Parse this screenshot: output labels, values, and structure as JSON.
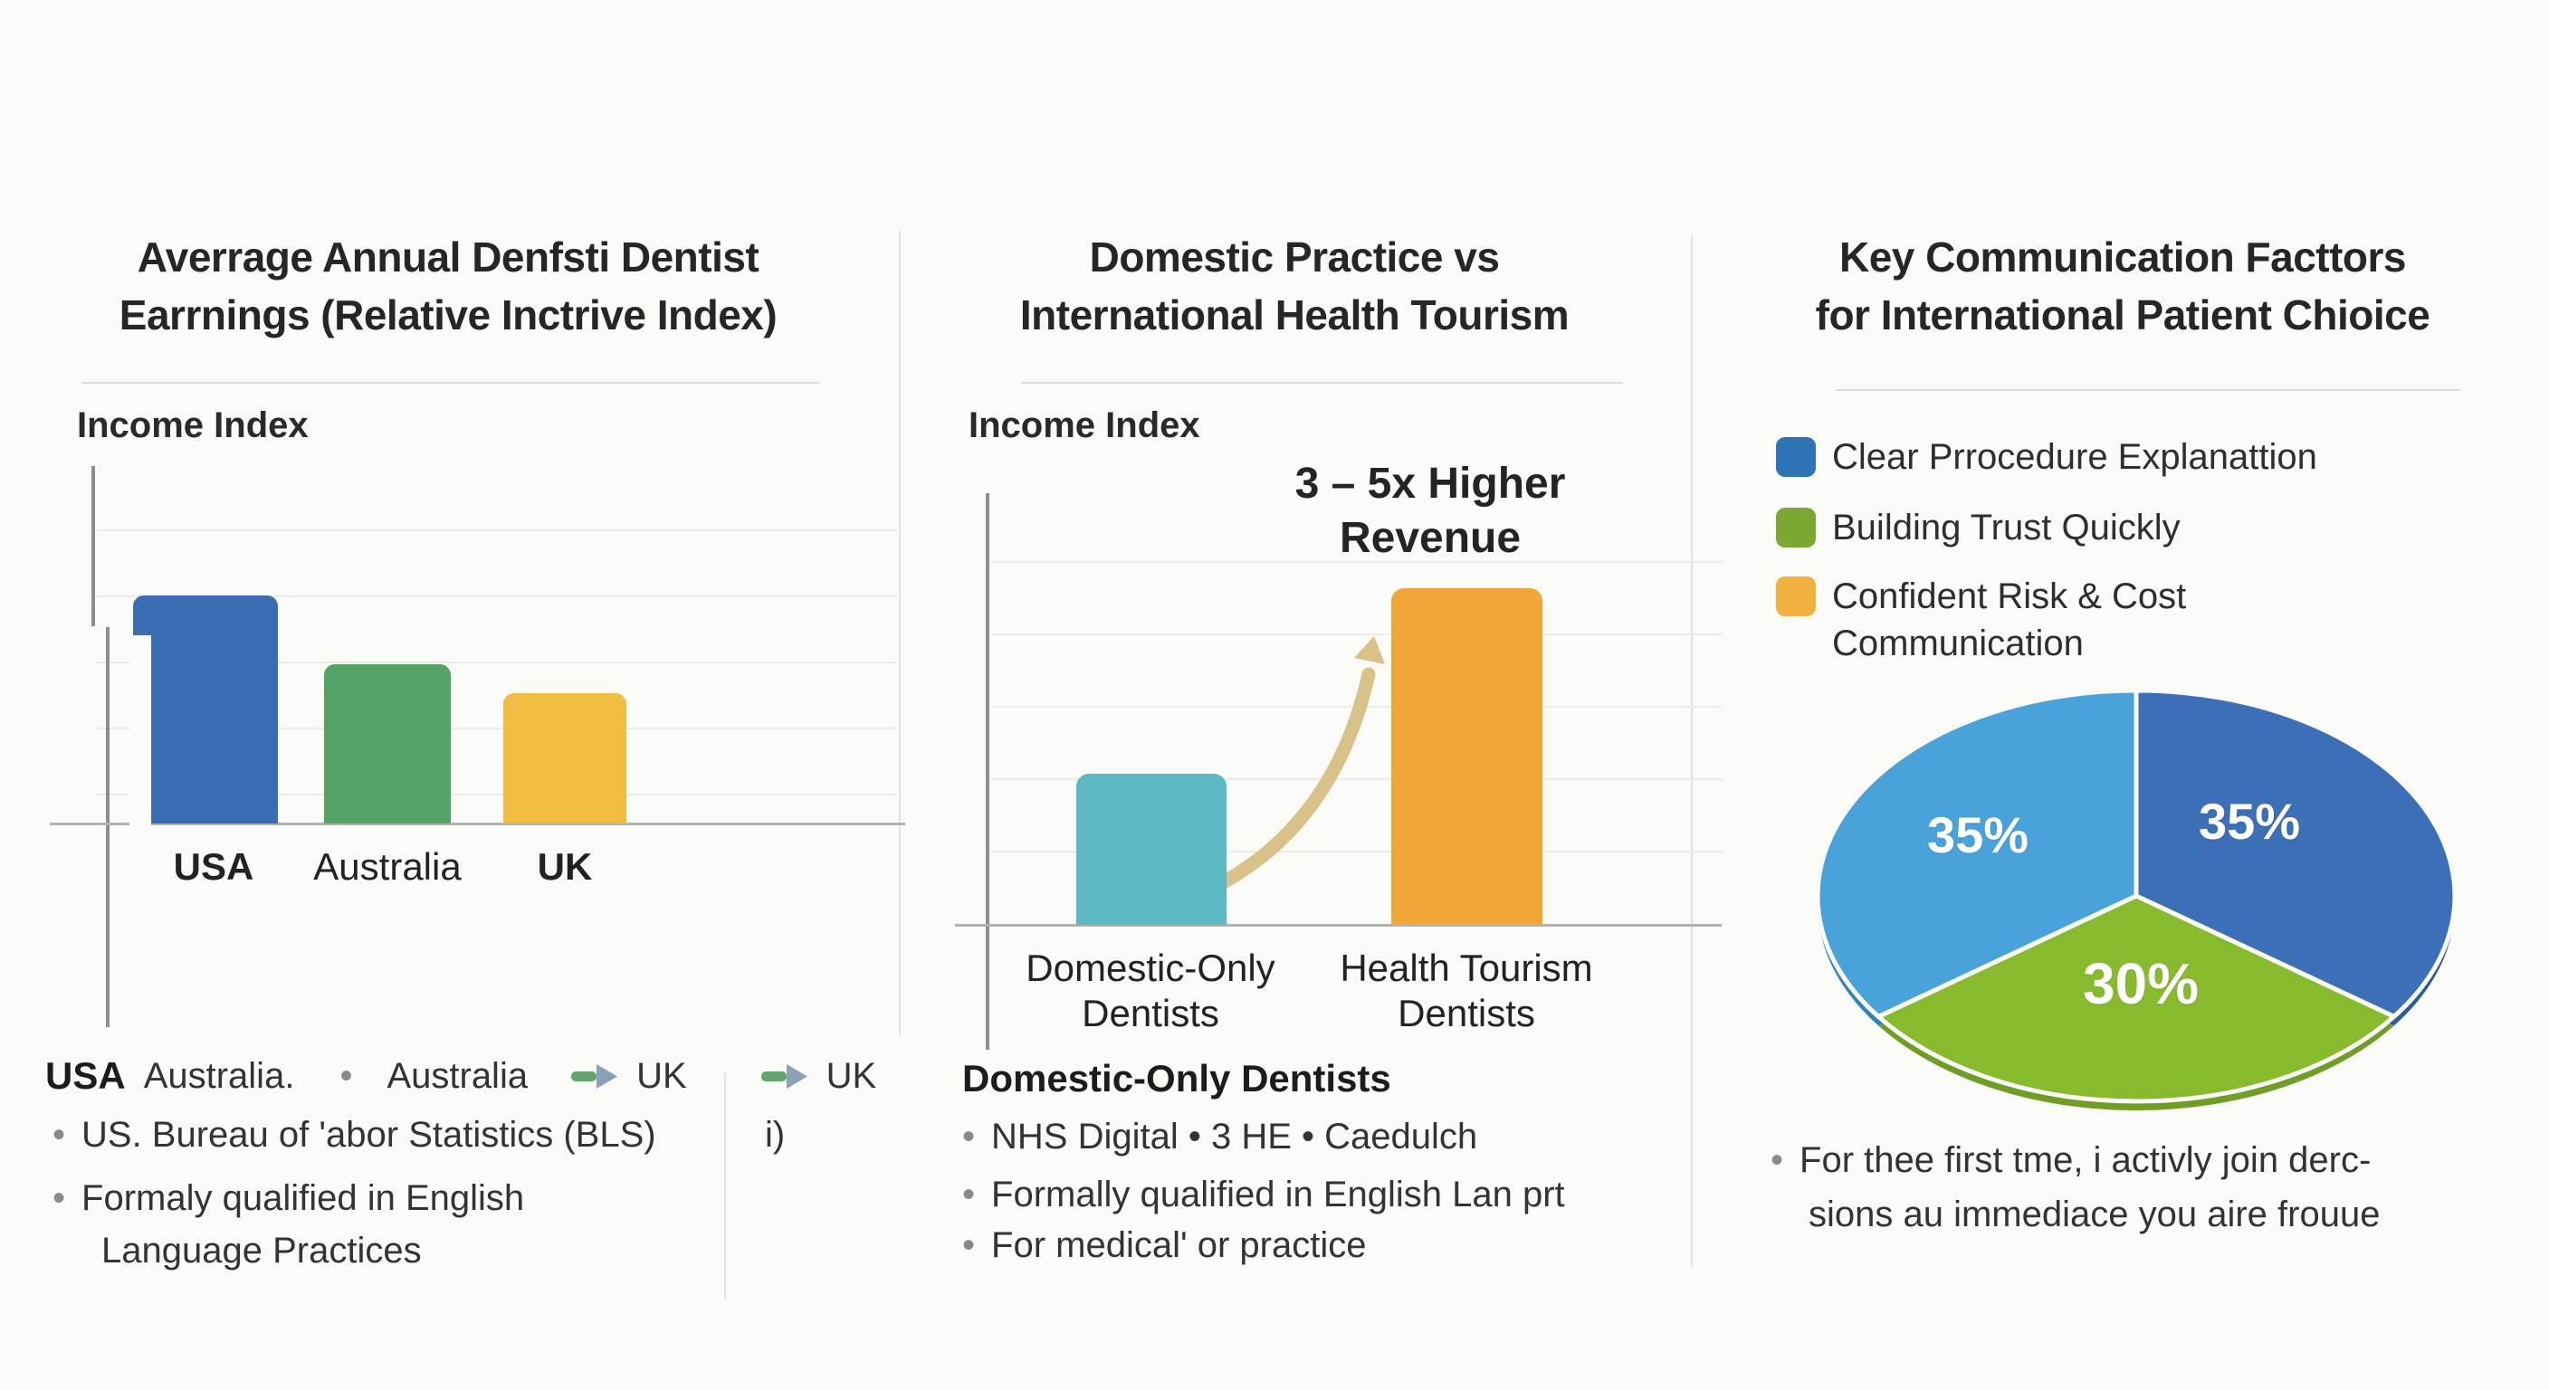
{
  "ui": {
    "bullet": "•"
  },
  "panels": {
    "earnings": {
      "title_line1": "Averrage Annual Denfsti Dentist",
      "title_line2": "Earrnings (Relative Inctrive Index)",
      "y_axis_label": "Income Index",
      "x_labels": [
        "USA",
        "Australia",
        "UK"
      ],
      "footer": {
        "strong": "USA",
        "after_strong": "Australia.",
        "item2": "Australia",
        "arrow1_target": "UK",
        "arrow2_target": "UK",
        "bullet1": "US. Bureau of 'abor Statistics (BLS)",
        "bullet1_note": "i)",
        "bullet2_line1": "Formaly qualified in English",
        "bullet2_line2": "Language Practices"
      }
    },
    "tourism": {
      "title_line1": "Domestic Practice vs",
      "title_line2": "International Health Tourism",
      "y_axis_label": "Income Index",
      "annotation_line1": "3 – 5x Higher",
      "annotation_line2": "Revenue",
      "cat1_line1": "Domestic-Only",
      "cat1_line2": "Dentists",
      "cat2_line1": "Health Tourism",
      "cat2_line2": "Dentists",
      "footer": {
        "heading": "Domestic-Only Dentists",
        "bullet1": "NHS Digital • 3 HE • Caedulch",
        "bullet2": "Formally qualified in English Lan prt",
        "bullet3": "For medical' or practice"
      }
    },
    "communication": {
      "title_line1": "Key Communication Facttors",
      "title_line2": "for International Patient Chioice",
      "legend": [
        {
          "label_line1": "Clear Prrocedure Explanattion",
          "label_line2": "",
          "color": "#2e73b5"
        },
        {
          "label_line1": "Building Trust Quickly",
          "label_line2": "",
          "color": "#7aa832"
        },
        {
          "label_line1": "Confident Risk & Cost",
          "label_line2": "Communication",
          "color": "#f0b13e"
        }
      ],
      "footer_line1": "For thee first tme, i activly join derc-",
      "footer_line2": "sions  au immediace you aire frouue"
    }
  },
  "chart_data": [
    {
      "type": "bar",
      "title": "Averrage Annual Denfsti Dentist Earrnings (Relative Inctrive Index)",
      "ylabel": "Income Index",
      "categories": [
        "USA",
        "Australia",
        "UK"
      ],
      "values": [
        100,
        70,
        57
      ],
      "colors": [
        "#3a6db4",
        "#55a266",
        "#f0bc42"
      ],
      "grid": true,
      "legend_position": "none"
    },
    {
      "type": "bar",
      "title": "Domestic Practice vs International Health Tourism",
      "ylabel": "Income Index",
      "categories": [
        "Domestic-Only Dentists",
        "Health Tourism Dentists"
      ],
      "values": [
        45,
        100
      ],
      "colors": [
        "#5cb9c2",
        "#f2a637"
      ],
      "annotation": "3 – 5x Higher Revenue",
      "grid": true,
      "legend_position": "none"
    },
    {
      "type": "pie",
      "title": "Key Communication Facttors for International Patient Chioice",
      "labels": [
        "Clear Prrocedure Explanattion",
        "Building Trust Quickly",
        "Confident Risk & Cost Communication"
      ],
      "values": [
        35,
        30,
        35
      ],
      "slices": [
        {
          "label": "Clear Prrocedure Explanattion",
          "value": 35,
          "display": "35%",
          "color": "#3c6fb7",
          "rim": "#2d5a9a"
        },
        {
          "label": "Building Trust Quickly",
          "value": 30,
          "display": "30%",
          "color": "#88ba2e",
          "rim": "#6f9d26"
        },
        {
          "label": "Confident Risk & Cost Communication",
          "value": 35,
          "display": "35%",
          "color": "#49a2d9",
          "rim": "#2f85ba"
        }
      ],
      "legend_position": "top",
      "grid": false
    }
  ]
}
